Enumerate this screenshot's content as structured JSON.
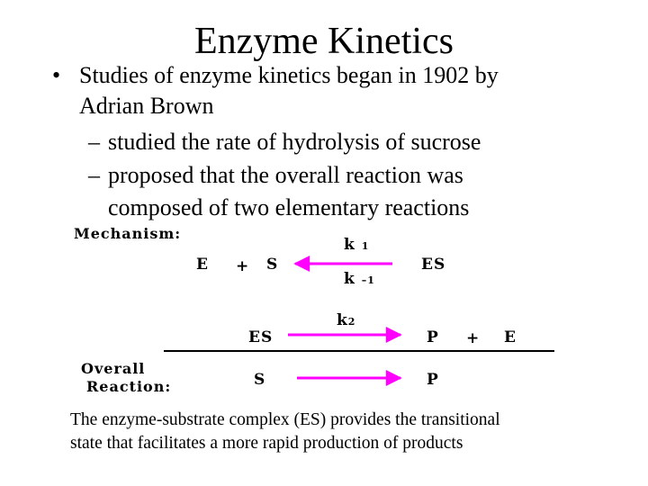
{
  "slide": {
    "title": "Enzyme Kinetics",
    "bullet": {
      "marker": "•",
      "line1": "Studies of enzyme kinetics began in 1902 by",
      "line2": "Adrian Brown"
    },
    "subbullets": [
      {
        "marker": "–",
        "lines": [
          "studied the rate of hydrolysis of sucrose"
        ]
      },
      {
        "marker": "–",
        "lines": [
          "proposed that the overall reaction was",
          "composed of two elementary reactions"
        ]
      }
    ],
    "diagram": {
      "mechanism_label": "Mechanism:",
      "overall_label_1": "Overall",
      "overall_label_2": "Reaction:",
      "step1": {
        "left1": "E",
        "plus": "+",
        "left2": "S",
        "right": "ES",
        "k_forward": "k",
        "k_forward_sub": "1",
        "k_reverse": "k",
        "k_reverse_sub": "–1"
      },
      "step2": {
        "left": "ES",
        "k": "k",
        "k_sub": "2",
        "right1": "P",
        "plus": "+",
        "right2": "E"
      },
      "overall": {
        "left": "S",
        "right": "P"
      },
      "arrow_color": "#ff00ff"
    },
    "footnote": [
      "The enzyme-substrate complex (ES) provides the transitional",
      "state that facilitates a more rapid production of products"
    ]
  }
}
